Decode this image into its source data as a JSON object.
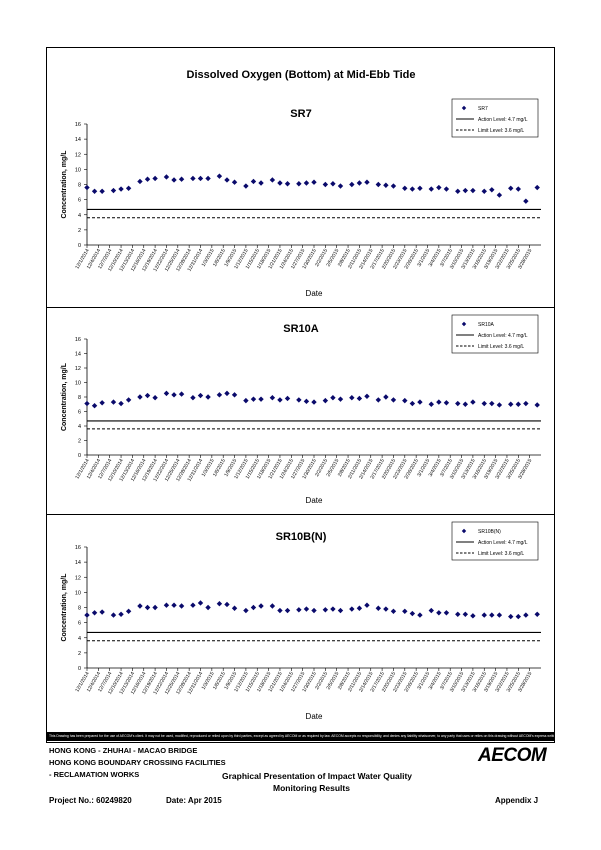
{
  "page_title": "Dissolved Oxygen (Bottom) at Mid-Ebb Tide",
  "legend_common": {
    "action_label": "Action Level: 4.7 mg/L",
    "limit_label": "Limit Level: 3.6 mg/L"
  },
  "colors": {
    "series": "#0a0a6b",
    "lines": "#000000",
    "frame": "#000000"
  },
  "chart_data": [
    {
      "type": "scatter",
      "title": "SR7",
      "legend_series": "SR7",
      "xlabel": "Date",
      "ylabel": "Concentration, mg/L",
      "ylim": [
        0,
        16
      ],
      "yticks": [
        "0",
        "2",
        "4",
        "6",
        "8",
        "10",
        "12",
        "14",
        "16"
      ],
      "xticks": [
        "12/1/2014",
        "12/4/2014",
        "12/7/2014",
        "12/10/2014",
        "12/13/2014",
        "12/16/2014",
        "12/19/2014",
        "12/22/2014",
        "12/25/2014",
        "12/28/2014",
        "12/31/2014",
        "1/3/2015",
        "1/6/2015",
        "1/9/2015",
        "1/12/2015",
        "1/15/2015",
        "1/18/2015",
        "1/21/2015",
        "1/24/2015",
        "1/27/2015",
        "1/30/2015",
        "2/2/2015",
        "2/5/2015",
        "2/8/2015",
        "2/11/2015",
        "2/14/2015",
        "2/17/2015",
        "2/20/2015",
        "2/23/2015",
        "2/26/2015",
        "3/1/2015",
        "3/4/2015",
        "3/7/2015",
        "3/10/2015",
        "3/13/2015",
        "3/16/2015",
        "3/19/2015",
        "3/22/2015",
        "3/25/2015",
        "3/28/2015"
      ],
      "action_level": 4.7,
      "limit_level": 3.6,
      "grid": false,
      "legend_position": "top-right",
      "points": [
        {
          "x": "12/1/2014",
          "y": 7.6
        },
        {
          "x": "12/3/2014",
          "y": 7.1
        },
        {
          "x": "12/5/2014",
          "y": 7.1
        },
        {
          "x": "12/8/2014",
          "y": 7.2
        },
        {
          "x": "12/10/2014",
          "y": 7.4
        },
        {
          "x": "12/12/2014",
          "y": 7.5
        },
        {
          "x": "12/15/2014",
          "y": 8.4
        },
        {
          "x": "12/17/2014",
          "y": 8.7
        },
        {
          "x": "12/19/2014",
          "y": 8.8
        },
        {
          "x": "12/22/2014",
          "y": 9.0
        },
        {
          "x": "12/24/2014",
          "y": 8.6
        },
        {
          "x": "12/26/2014",
          "y": 8.7
        },
        {
          "x": "12/29/2014",
          "y": 8.8
        },
        {
          "x": "12/31/2014",
          "y": 8.8
        },
        {
          "x": "1/2/2015",
          "y": 8.8
        },
        {
          "x": "1/5/2015",
          "y": 9.1
        },
        {
          "x": "1/7/2015",
          "y": 8.6
        },
        {
          "x": "1/9/2015",
          "y": 8.3
        },
        {
          "x": "1/12/2015",
          "y": 7.8
        },
        {
          "x": "1/14/2015",
          "y": 8.4
        },
        {
          "x": "1/16/2015",
          "y": 8.2
        },
        {
          "x": "1/19/2015",
          "y": 8.6
        },
        {
          "x": "1/21/2015",
          "y": 8.2
        },
        {
          "x": "1/23/2015",
          "y": 8.1
        },
        {
          "x": "1/26/2015",
          "y": 8.1
        },
        {
          "x": "1/28/2015",
          "y": 8.2
        },
        {
          "x": "1/30/2015",
          "y": 8.3
        },
        {
          "x": "2/2/2015",
          "y": 8.0
        },
        {
          "x": "2/4/2015",
          "y": 8.1
        },
        {
          "x": "2/6/2015",
          "y": 7.8
        },
        {
          "x": "2/9/2015",
          "y": 8.0
        },
        {
          "x": "2/11/2015",
          "y": 8.2
        },
        {
          "x": "2/13/2015",
          "y": 8.3
        },
        {
          "x": "2/16/2015",
          "y": 8.0
        },
        {
          "x": "2/18/2015",
          "y": 7.9
        },
        {
          "x": "2/20/2015",
          "y": 7.8
        },
        {
          "x": "2/23/2015",
          "y": 7.5
        },
        {
          "x": "2/25/2015",
          "y": 7.4
        },
        {
          "x": "2/27/2015",
          "y": 7.5
        },
        {
          "x": "3/2/2015",
          "y": 7.4
        },
        {
          "x": "3/4/2015",
          "y": 7.6
        },
        {
          "x": "3/6/2015",
          "y": 7.4
        },
        {
          "x": "3/9/2015",
          "y": 7.1
        },
        {
          "x": "3/11/2015",
          "y": 7.2
        },
        {
          "x": "3/13/2015",
          "y": 7.2
        },
        {
          "x": "3/16/2015",
          "y": 7.1
        },
        {
          "x": "3/18/2015",
          "y": 7.3
        },
        {
          "x": "3/20/2015",
          "y": 6.6
        },
        {
          "x": "3/23/2015",
          "y": 7.5
        },
        {
          "x": "3/25/2015",
          "y": 7.4
        },
        {
          "x": "3/27/2015",
          "y": 5.8
        },
        {
          "x": "3/30/2015",
          "y": 7.6
        }
      ]
    },
    {
      "type": "scatter",
      "title": "SR10A",
      "legend_series": "SR10A",
      "xlabel": "Date",
      "ylabel": "Concentration, mg/L",
      "ylim": [
        0,
        16
      ],
      "yticks": [
        "0",
        "2",
        "4",
        "6",
        "8",
        "10",
        "12",
        "14",
        "16"
      ],
      "xticks": [
        "12/1/2014",
        "12/4/2014",
        "12/7/2014",
        "12/10/2014",
        "12/13/2014",
        "12/16/2014",
        "12/19/2014",
        "12/22/2014",
        "12/25/2014",
        "12/28/2014",
        "12/31/2014",
        "1/3/2015",
        "1/6/2015",
        "1/9/2015",
        "1/12/2015",
        "1/15/2015",
        "1/18/2015",
        "1/21/2015",
        "1/24/2015",
        "1/27/2015",
        "1/30/2015",
        "2/2/2015",
        "2/5/2015",
        "2/8/2015",
        "2/11/2015",
        "2/14/2015",
        "2/17/2015",
        "2/20/2015",
        "2/23/2015",
        "2/26/2015",
        "3/1/2015",
        "3/4/2015",
        "3/7/2015",
        "3/10/2015",
        "3/13/2015",
        "3/16/2015",
        "3/19/2015",
        "3/22/2015",
        "3/25/2015",
        "3/28/2015"
      ],
      "action_level": 4.7,
      "limit_level": 3.6,
      "grid": false,
      "legend_position": "top-right",
      "points": [
        {
          "x": "12/1/2014",
          "y": 7.1
        },
        {
          "x": "12/3/2014",
          "y": 6.8
        },
        {
          "x": "12/5/2014",
          "y": 7.2
        },
        {
          "x": "12/8/2014",
          "y": 7.3
        },
        {
          "x": "12/10/2014",
          "y": 7.1
        },
        {
          "x": "12/12/2014",
          "y": 7.6
        },
        {
          "x": "12/15/2014",
          "y": 8.0
        },
        {
          "x": "12/17/2014",
          "y": 8.2
        },
        {
          "x": "12/19/2014",
          "y": 7.9
        },
        {
          "x": "12/22/2014",
          "y": 8.5
        },
        {
          "x": "12/24/2014",
          "y": 8.3
        },
        {
          "x": "12/26/2014",
          "y": 8.4
        },
        {
          "x": "12/29/2014",
          "y": 7.9
        },
        {
          "x": "12/31/2014",
          "y": 8.2
        },
        {
          "x": "1/2/2015",
          "y": 8.0
        },
        {
          "x": "1/5/2015",
          "y": 8.3
        },
        {
          "x": "1/7/2015",
          "y": 8.5
        },
        {
          "x": "1/9/2015",
          "y": 8.3
        },
        {
          "x": "1/12/2015",
          "y": 7.5
        },
        {
          "x": "1/14/2015",
          "y": 7.7
        },
        {
          "x": "1/16/2015",
          "y": 7.7
        },
        {
          "x": "1/19/2015",
          "y": 7.9
        },
        {
          "x": "1/21/2015",
          "y": 7.6
        },
        {
          "x": "1/23/2015",
          "y": 7.8
        },
        {
          "x": "1/26/2015",
          "y": 7.6
        },
        {
          "x": "1/28/2015",
          "y": 7.4
        },
        {
          "x": "1/30/2015",
          "y": 7.3
        },
        {
          "x": "2/2/2015",
          "y": 7.5
        },
        {
          "x": "2/4/2015",
          "y": 7.9
        },
        {
          "x": "2/6/2015",
          "y": 7.7
        },
        {
          "x": "2/9/2015",
          "y": 7.9
        },
        {
          "x": "2/11/2015",
          "y": 7.8
        },
        {
          "x": "2/13/2015",
          "y": 8.1
        },
        {
          "x": "2/16/2015",
          "y": 7.6
        },
        {
          "x": "2/18/2015",
          "y": 8.0
        },
        {
          "x": "2/20/2015",
          "y": 7.6
        },
        {
          "x": "2/23/2015",
          "y": 7.5
        },
        {
          "x": "2/25/2015",
          "y": 7.1
        },
        {
          "x": "2/27/2015",
          "y": 7.3
        },
        {
          "x": "3/2/2015",
          "y": 7.0
        },
        {
          "x": "3/4/2015",
          "y": 7.3
        },
        {
          "x": "3/6/2015",
          "y": 7.2
        },
        {
          "x": "3/9/2015",
          "y": 7.1
        },
        {
          "x": "3/11/2015",
          "y": 7.0
        },
        {
          "x": "3/13/2015",
          "y": 7.3
        },
        {
          "x": "3/16/2015",
          "y": 7.1
        },
        {
          "x": "3/18/2015",
          "y": 7.1
        },
        {
          "x": "3/20/2015",
          "y": 6.9
        },
        {
          "x": "3/23/2015",
          "y": 7.0
        },
        {
          "x": "3/25/2015",
          "y": 7.0
        },
        {
          "x": "3/27/2015",
          "y": 7.1
        },
        {
          "x": "3/30/2015",
          "y": 6.9
        }
      ]
    },
    {
      "type": "scatter",
      "title": "SR10B(N)",
      "legend_series": "SR10B(N)",
      "xlabel": "Date",
      "ylabel": "Concentration, mg/L",
      "ylim": [
        0,
        16
      ],
      "yticks": [
        "0",
        "2",
        "4",
        "6",
        "8",
        "10",
        "12",
        "14",
        "16"
      ],
      "xticks": [
        "12/1/2014",
        "12/4/2014",
        "12/7/2014",
        "12/10/2014",
        "12/13/2014",
        "12/16/2014",
        "12/19/2014",
        "12/22/2014",
        "12/25/2014",
        "12/28/2014",
        "12/31/2014",
        "1/3/2015",
        "1/6/2015",
        "1/9/2015",
        "1/12/2015",
        "1/15/2015",
        "1/18/2015",
        "1/21/2015",
        "1/24/2015",
        "1/27/2015",
        "1/30/2015",
        "2/2/2015",
        "2/5/2015",
        "2/8/2015",
        "2/11/2015",
        "2/14/2015",
        "2/17/2015",
        "2/20/2015",
        "2/23/2015",
        "2/26/2015",
        "3/1/2015",
        "3/4/2015",
        "3/7/2015",
        "3/10/2015",
        "3/13/2015",
        "3/16/2015",
        "3/19/2015",
        "3/22/2015",
        "3/25/2015",
        "3/28/2015"
      ],
      "action_level": 4.7,
      "limit_level": 3.6,
      "grid": false,
      "legend_position": "top-right",
      "points": [
        {
          "x": "12/1/2014",
          "y": 7.0
        },
        {
          "x": "12/3/2014",
          "y": 7.3
        },
        {
          "x": "12/5/2014",
          "y": 7.4
        },
        {
          "x": "12/8/2014",
          "y": 7.0
        },
        {
          "x": "12/10/2014",
          "y": 7.1
        },
        {
          "x": "12/12/2014",
          "y": 7.5
        },
        {
          "x": "12/15/2014",
          "y": 8.2
        },
        {
          "x": "12/17/2014",
          "y": 8.0
        },
        {
          "x": "12/19/2014",
          "y": 8.0
        },
        {
          "x": "12/22/2014",
          "y": 8.3
        },
        {
          "x": "12/24/2014",
          "y": 8.3
        },
        {
          "x": "12/26/2014",
          "y": 8.2
        },
        {
          "x": "12/29/2014",
          "y": 8.3
        },
        {
          "x": "12/31/2014",
          "y": 8.6
        },
        {
          "x": "1/2/2015",
          "y": 8.0
        },
        {
          "x": "1/5/2015",
          "y": 8.5
        },
        {
          "x": "1/7/2015",
          "y": 8.4
        },
        {
          "x": "1/9/2015",
          "y": 7.9
        },
        {
          "x": "1/12/2015",
          "y": 7.6
        },
        {
          "x": "1/14/2015",
          "y": 8.0
        },
        {
          "x": "1/16/2015",
          "y": 8.2
        },
        {
          "x": "1/19/2015",
          "y": 8.2
        },
        {
          "x": "1/21/2015",
          "y": 7.6
        },
        {
          "x": "1/23/2015",
          "y": 7.6
        },
        {
          "x": "1/26/2015",
          "y": 7.7
        },
        {
          "x": "1/28/2015",
          "y": 7.8
        },
        {
          "x": "1/30/2015",
          "y": 7.6
        },
        {
          "x": "2/2/2015",
          "y": 7.7
        },
        {
          "x": "2/4/2015",
          "y": 7.8
        },
        {
          "x": "2/6/2015",
          "y": 7.6
        },
        {
          "x": "2/9/2015",
          "y": 7.8
        },
        {
          "x": "2/11/2015",
          "y": 7.9
        },
        {
          "x": "2/13/2015",
          "y": 8.3
        },
        {
          "x": "2/16/2015",
          "y": 7.9
        },
        {
          "x": "2/18/2015",
          "y": 7.8
        },
        {
          "x": "2/20/2015",
          "y": 7.5
        },
        {
          "x": "2/23/2015",
          "y": 7.5
        },
        {
          "x": "2/25/2015",
          "y": 7.2
        },
        {
          "x": "2/27/2015",
          "y": 7.0
        },
        {
          "x": "3/2/2015",
          "y": 7.6
        },
        {
          "x": "3/4/2015",
          "y": 7.3
        },
        {
          "x": "3/6/2015",
          "y": 7.3
        },
        {
          "x": "3/9/2015",
          "y": 7.1
        },
        {
          "x": "3/11/2015",
          "y": 7.1
        },
        {
          "x": "3/13/2015",
          "y": 6.9
        },
        {
          "x": "3/16/2015",
          "y": 7.0
        },
        {
          "x": "3/18/2015",
          "y": 7.0
        },
        {
          "x": "3/20/2015",
          "y": 7.0
        },
        {
          "x": "3/23/2015",
          "y": 6.8
        },
        {
          "x": "3/25/2015",
          "y": 6.8
        },
        {
          "x": "3/27/2015",
          "y": 7.0
        },
        {
          "x": "3/30/2015",
          "y": 7.1
        }
      ]
    }
  ],
  "footer": {
    "notice": "This Drawing has been prepared for the use of AECOM's client. It may not be used, modified, reproduced or relied upon by third parties, except as agreed by AECOM or as required by law. AECOM accepts no responsibility, and denies any liability whatsoever, to any party that uses or relies on this drawing without AECOM's express written consent.",
    "project_line1": "HONG KONG - ZHUHAI - MACAO BRIDGE",
    "project_line2": "HONG KONG BOUNDARY CROSSING FACILITIES",
    "project_line3": "- RECLAMATION WORKS",
    "report_title_line1": "Graphical Presentation of Impact Water Quality",
    "report_title_line2": "Monitoring Results",
    "project_no": "Project No.: 60249820",
    "date": "Date: Apr 2015",
    "appendix": "Appendix J",
    "logo_text": "AECOM"
  }
}
